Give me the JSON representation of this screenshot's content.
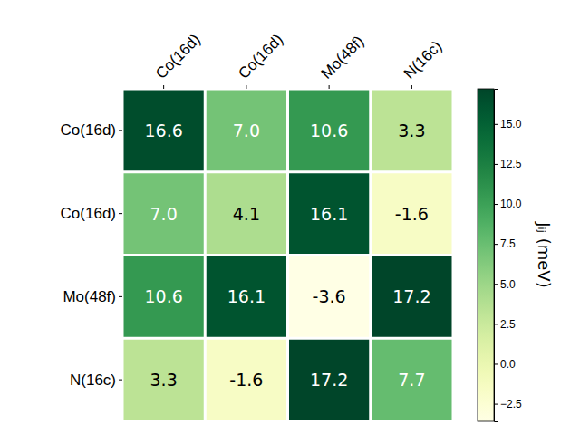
{
  "chart_data": {
    "type": "heatmap",
    "x_categories": [
      "Co(16d)",
      "Co(16d)",
      "Mo(48f)",
      "N(16c)"
    ],
    "y_categories": [
      "Co(16d)",
      "Co(16d)",
      "Mo(48f)",
      "N(16c)"
    ],
    "cells": [
      [
        16.6,
        7.0,
        10.6,
        3.3
      ],
      [
        7.0,
        4.1,
        16.1,
        -1.6
      ],
      [
        10.6,
        16.1,
        -3.6,
        17.2
      ],
      [
        3.3,
        -1.6,
        17.2,
        7.7
      ]
    ],
    "value_labels": [
      [
        "16.6",
        "7.0",
        "10.6",
        "3.3"
      ],
      [
        "7.0",
        "4.1",
        "16.1",
        "-1.6"
      ],
      [
        "10.6",
        "16.1",
        "-3.6",
        "17.2"
      ],
      [
        "3.3",
        "-1.6",
        "17.2",
        "7.7"
      ]
    ],
    "data_labels": true,
    "color": "YlGn",
    "colorbar": {
      "label": "Jᵢⱼ (meV)",
      "range": [
        -3.6,
        17.2
      ],
      "ticks": [
        {
          "value": -2.5,
          "label": "−2.5"
        },
        {
          "value": 0,
          "label": "0.0"
        },
        {
          "value": 2.5,
          "label": "2.5"
        },
        {
          "value": 5,
          "label": "5.0"
        },
        {
          "value": 7.5,
          "label": "7.5"
        },
        {
          "value": 10,
          "label": "10.0"
        },
        {
          "value": 12.5,
          "label": "12.5"
        },
        {
          "value": 15,
          "label": "15.0"
        }
      ]
    }
  }
}
